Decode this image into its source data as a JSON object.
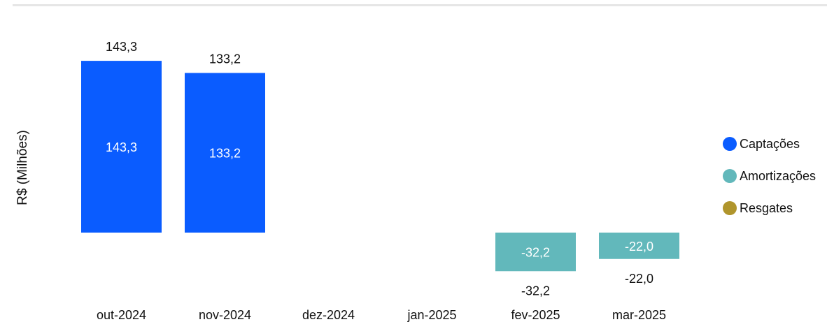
{
  "chart_data": {
    "type": "bar",
    "ylabel": "R$ (Milhões)",
    "categories": [
      "out-2024",
      "nov-2024",
      "dez-2024",
      "jan-2025",
      "fev-2025",
      "mar-2025"
    ],
    "series": [
      {
        "name": "Captações",
        "color": "#0a5cff",
        "values": [
          143.3,
          133.2,
          null,
          null,
          null,
          null
        ],
        "labels": [
          "143,3",
          "133,2",
          "",
          "",
          "",
          ""
        ]
      },
      {
        "name": "Amortizações",
        "color": "#62b8bb",
        "values": [
          null,
          null,
          null,
          null,
          -32.2,
          -22.0
        ],
        "labels": [
          "",
          "",
          "",
          "",
          "-32,2",
          "-22,0"
        ]
      },
      {
        "name": "Resgates",
        "color": "#b0952c",
        "values": [
          null,
          null,
          null,
          null,
          null,
          null
        ],
        "labels": [
          "",
          "",
          "",
          "",
          "",
          ""
        ]
      }
    ],
    "totals": [
      "143,3",
      "133,2",
      "",
      "",
      "-32,2",
      "-22,0"
    ],
    "legend_position": "right",
    "grid": false
  }
}
